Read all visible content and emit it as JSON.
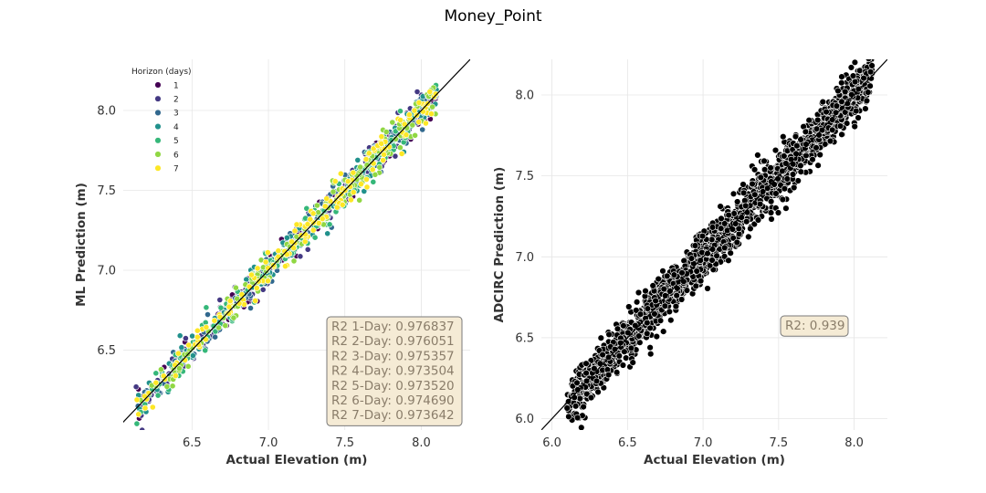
{
  "figure_title": "Money_Point",
  "colors": {
    "h1": "#440154",
    "h2": "#443983",
    "h3": "#31688e",
    "h4": "#21918c",
    "h5": "#35b779",
    "h6": "#90d743",
    "h7": "#fde725",
    "adcirc_point": "#000000",
    "grid": "#e6e6e6",
    "box_bg": "#f5ebd5",
    "box_text": "#8a7d6a"
  },
  "chart_data": [
    {
      "type": "scatter",
      "xlabel": "Actual Elevation (m)",
      "ylabel": "ML Prediction (m)",
      "xlim": [
        6.05,
        8.32
      ],
      "ylim": [
        6.0,
        8.32
      ],
      "xticks": [
        "6.5",
        "7.0",
        "7.5",
        "8.0"
      ],
      "yticks": [
        "6.5",
        "7.0",
        "7.5",
        "8.0"
      ],
      "grid": true,
      "reference_line": "y = x",
      "legend": {
        "title": "Horizon (days)",
        "placement": "upper-left",
        "entries": [
          "1",
          "2",
          "3",
          "4",
          "5",
          "6",
          "7"
        ]
      },
      "series": [
        {
          "name": "1",
          "r2": 0.976837,
          "x_range": [
            6.13,
            8.1
          ],
          "noise_sd": 0.05
        },
        {
          "name": "2",
          "r2": 0.976051,
          "x_range": [
            6.13,
            8.1
          ],
          "noise_sd": 0.05
        },
        {
          "name": "3",
          "r2": 0.975357,
          "x_range": [
            6.13,
            8.1
          ],
          "noise_sd": 0.05
        },
        {
          "name": "4",
          "r2": 0.973504,
          "x_range": [
            6.13,
            8.1
          ],
          "noise_sd": 0.055
        },
        {
          "name": "5",
          "r2": 0.97352,
          "x_range": [
            6.13,
            8.1
          ],
          "noise_sd": 0.055
        },
        {
          "name": "6",
          "r2": 0.97469,
          "x_range": [
            6.13,
            8.1
          ],
          "noise_sd": 0.055
        },
        {
          "name": "7",
          "r2": 0.973642,
          "x_range": [
            6.13,
            8.1
          ],
          "noise_sd": 0.055
        }
      ],
      "stats_box": [
        "R2 1-Day: 0.976837",
        "R2 2-Day: 0.976051",
        "R2 3-Day: 0.975357",
        "R2 4-Day: 0.973504",
        "R2 5-Day: 0.973520",
        "R2 6-Day: 0.974690",
        "R2 7-Day: 0.973642"
      ]
    },
    {
      "type": "scatter",
      "xlabel": "Actual Elevation (m)",
      "ylabel": "ADCIRC Prediction (m)",
      "xlim": [
        5.93,
        8.22
      ],
      "ylim": [
        5.93,
        8.22
      ],
      "xticks": [
        "6.0",
        "6.5",
        "7.0",
        "7.5",
        "8.0"
      ],
      "yticks": [
        "6.0",
        "6.5",
        "7.0",
        "7.5",
        "8.0"
      ],
      "grid": true,
      "reference_line": "y = x",
      "series": [
        {
          "name": "",
          "x_range": [
            6.1,
            8.12
          ],
          "noise_sd": 0.075
        }
      ],
      "stats_box": [
        "R2: 0.939"
      ]
    }
  ]
}
